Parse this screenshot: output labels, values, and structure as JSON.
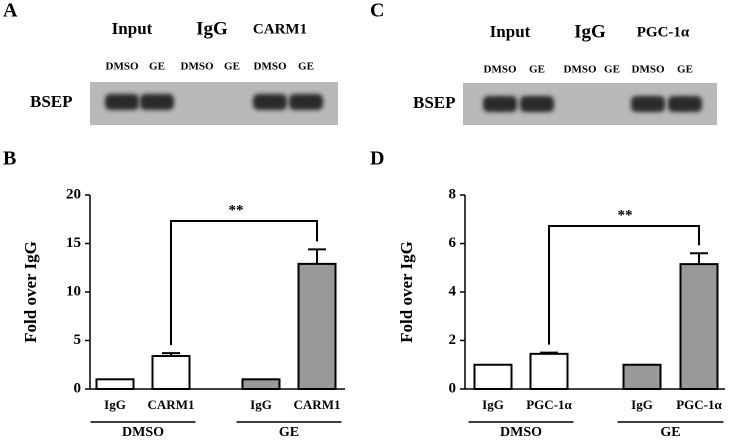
{
  "gels": [
    {
      "panel_label": "A",
      "lane_groups": [
        "Input",
        "IgG",
        "CARM1"
      ],
      "lanes": [
        "DMSO",
        "GE",
        "DMSO",
        "GE",
        "DMSO",
        "GE"
      ],
      "row_label": "BSEP"
    },
    {
      "panel_label": "C",
      "lane_groups": [
        "Input",
        "IgG",
        "PGC-1α"
      ],
      "lanes": [
        "DMSO",
        "GE",
        "DMSO",
        "GE",
        "DMSO",
        "GE"
      ],
      "row_label": "BSEP"
    }
  ],
  "chart_data": [
    {
      "type": "bar",
      "panel_label": "B",
      "ylabel": "Fold over IgG",
      "categories": [
        "IgG",
        "CARM1",
        "IgG",
        "CARM1"
      ],
      "groups": [
        "DMSO",
        "GE"
      ],
      "values": [
        1,
        3.4,
        1,
        12.9
      ],
      "errors": [
        null,
        0.3,
        null,
        1.5
      ],
      "colors": [
        "#ffffff",
        "#ffffff",
        "#999999",
        "#999999"
      ],
      "ylim": [
        0,
        20
      ],
      "yticks": [
        0,
        5,
        10,
        15,
        20
      ],
      "annotation": "**"
    },
    {
      "type": "bar",
      "panel_label": "D",
      "ylabel": "Fold over IgG",
      "categories": [
        "IgG",
        "PGC-1α",
        "IgG",
        "PGC-1α"
      ],
      "groups": [
        "DMSO",
        "GE"
      ],
      "values": [
        1,
        1.45,
        1,
        5.15
      ],
      "errors": [
        null,
        0.05,
        null,
        0.45
      ],
      "colors": [
        "#ffffff",
        "#ffffff",
        "#999999",
        "#999999"
      ],
      "ylim": [
        0,
        8
      ],
      "yticks": [
        0,
        2,
        4,
        6,
        8
      ],
      "annotation": "**"
    }
  ]
}
